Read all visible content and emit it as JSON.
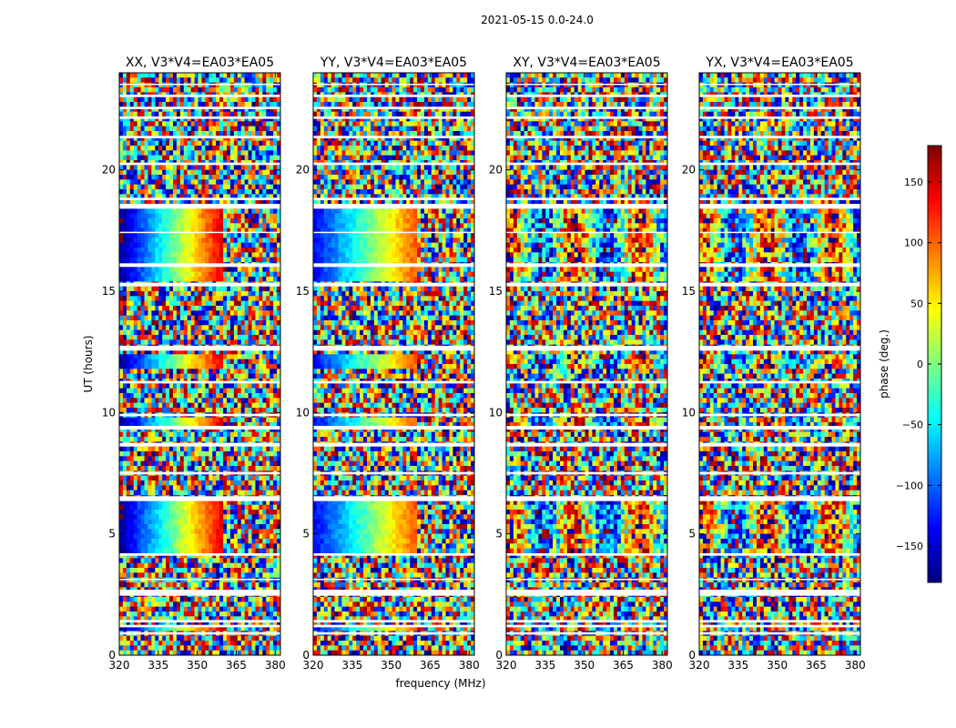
{
  "figure": {
    "suptitle": "2021-05-15 0.0-24.0",
    "xlabel": "frequency (MHz)",
    "ylabel": "UT (hours)"
  },
  "chart_data": {
    "type": "heatmap",
    "x": {
      "label": "frequency (MHz)",
      "lim": [
        320,
        382
      ],
      "ticks": [
        320,
        335,
        350,
        365,
        380
      ],
      "tick_labels": [
        "320",
        "335",
        "350",
        "365",
        "380"
      ]
    },
    "y": {
      "label": "UT (hours)",
      "lim": [
        0,
        24
      ],
      "ticks": [
        0,
        5,
        10,
        15,
        20
      ],
      "tick_labels": [
        "0",
        "5",
        "10",
        "15",
        "20"
      ]
    },
    "panels": [
      {
        "title": "XX, V3*V4=EA03*EA05",
        "pattern": "parallel-hand",
        "phase_start_deg": -175,
        "phase_slope_deg_per_mhz": 8.5
      },
      {
        "title": "YY, V3*V4=EA03*EA05",
        "pattern": "parallel-hand",
        "phase_start_deg": -140,
        "phase_slope_deg_per_mhz": 6.5
      },
      {
        "title": "XY, V3*V4=EA03*EA05",
        "pattern": "cross-hand",
        "phase_start_deg": 0,
        "phase_slope_deg_per_mhz": 0
      },
      {
        "title": "YX, V3*V4=EA03*EA05",
        "pattern": "cross-hand",
        "phase_start_deg": 0,
        "phase_slope_deg_per_mhz": 0
      }
    ],
    "colorbar": {
      "label": "phase (deg.)",
      "lim": [
        -180,
        180
      ],
      "ticks": [
        150,
        100,
        50,
        0,
        -50,
        -100,
        -150
      ],
      "tick_labels": [
        "150",
        "100",
        "50",
        "0",
        "−50",
        "−100",
        "−150"
      ],
      "colormap": "jet",
      "colors": [
        "#00007f",
        "#0000ff",
        "#007fff",
        "#00ffff",
        "#7fff7f",
        "#ffff00",
        "#ff7f00",
        "#ff0000",
        "#7f0000"
      ]
    },
    "flagged_ut_bands_hours": [
      [
        0.85,
        0.95
      ],
      [
        1.15,
        1.25
      ],
      [
        1.35,
        1.45
      ],
      [
        2.45,
        2.7
      ],
      [
        3.1,
        3.15
      ],
      [
        4.1,
        4.2
      ],
      [
        6.35,
        6.55
      ],
      [
        7.45,
        7.55
      ],
      [
        8.6,
        8.75
      ],
      [
        9.3,
        9.45
      ],
      [
        9.85,
        9.95
      ],
      [
        11.2,
        11.3
      ],
      [
        12.55,
        12.75
      ],
      [
        15.2,
        15.35
      ],
      [
        16.0,
        16.15
      ],
      [
        17.4,
        17.45
      ],
      [
        18.4,
        18.6
      ],
      [
        18.75,
        18.85
      ],
      [
        20.2,
        20.3
      ],
      [
        21.3,
        21.4
      ],
      [
        22.1,
        22.2
      ],
      [
        22.5,
        22.6
      ],
      [
        23.0,
        23.1
      ],
      [
        23.5,
        23.55
      ]
    ]
  }
}
